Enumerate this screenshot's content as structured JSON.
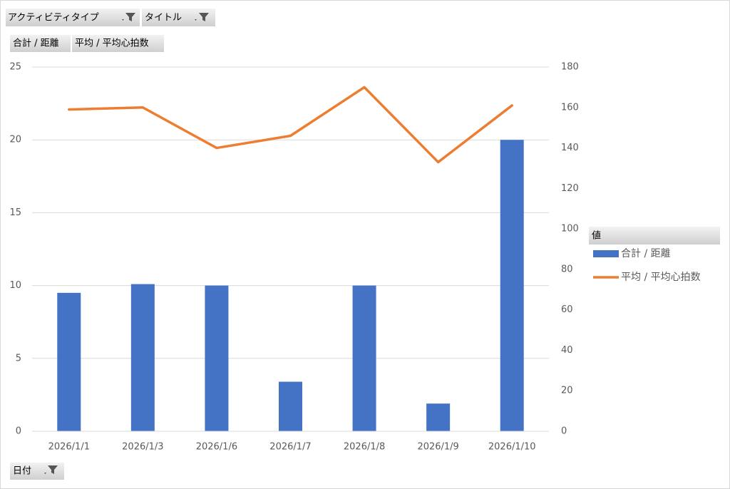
{
  "pivot_buttons": {
    "filters": [
      "アクティビティタイプ",
      "タイトル"
    ],
    "values": [
      "合計 / 距離",
      "平均 / 平均心拍数"
    ],
    "axis": "日付"
  },
  "chart_data": {
    "type": "combo",
    "categories": [
      "2026/1/1",
      "2026/1/3",
      "2026/1/6",
      "2026/1/7",
      "2026/1/8",
      "2026/1/9",
      "2026/1/10"
    ],
    "series": [
      {
        "name": "合計 / 距離",
        "type": "bar",
        "color": "#4472c4",
        "values": [
          9.5,
          10.1,
          10.0,
          3.4,
          10.0,
          1.9,
          20.0
        ]
      },
      {
        "name": "平均 / 平均心拍数",
        "type": "line",
        "axis": "y2",
        "color": "#ed7d31",
        "values": [
          159,
          160,
          140,
          146,
          170,
          133,
          161
        ]
      }
    ],
    "ylim": [
      0,
      25
    ],
    "yticks": [
      0,
      5,
      10,
      15,
      20,
      25
    ],
    "y2lim": [
      0,
      180
    ],
    "y2ticks": [
      0,
      20,
      40,
      60,
      80,
      100,
      120,
      140,
      160,
      180
    ],
    "grid": true,
    "legend_title": "値",
    "legend": "right"
  }
}
